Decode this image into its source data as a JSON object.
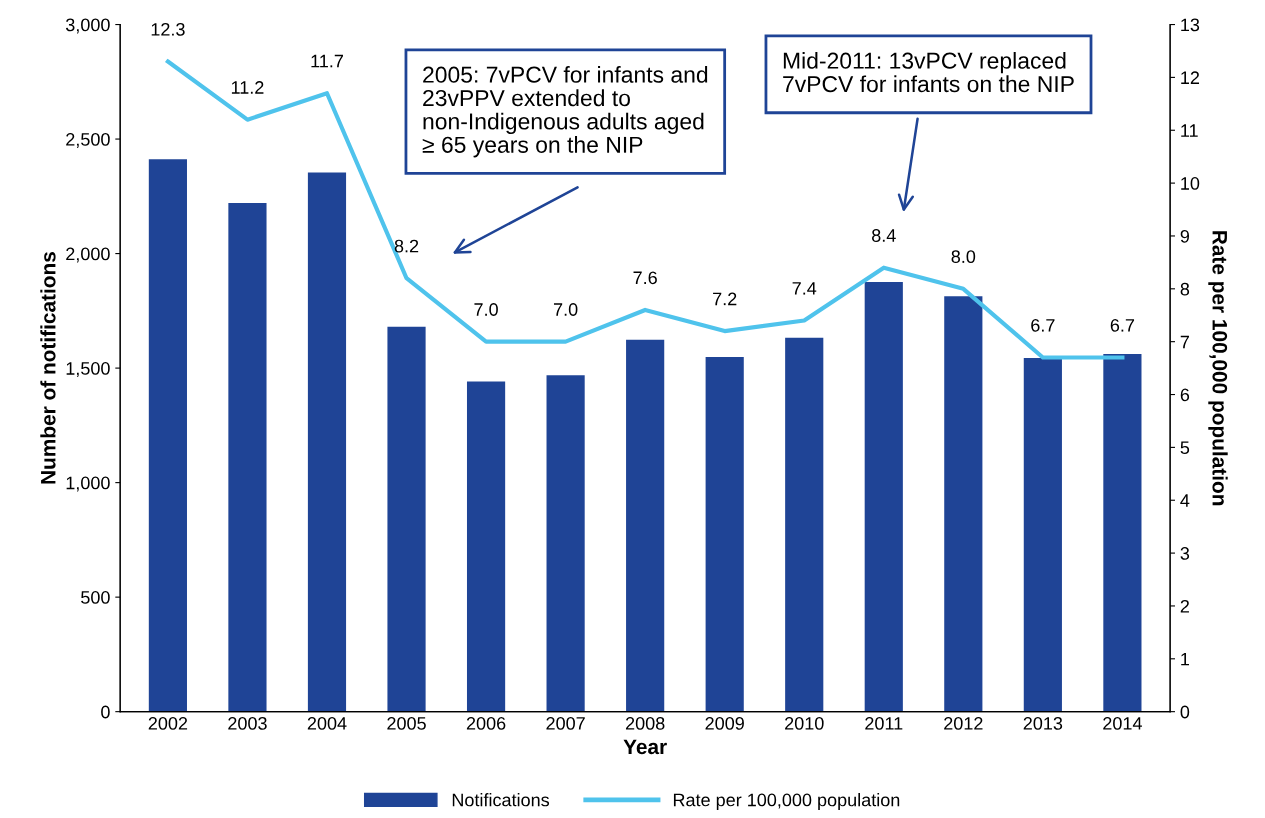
{
  "chart_data": {
    "type": "bar",
    "xlabel": "Year",
    "ylabel": "Number of notifications",
    "y2label": "Rate per 100,000 population",
    "categories": [
      "2002",
      "2003",
      "2004",
      "2005",
      "2006",
      "2007",
      "2008",
      "2009",
      "2010",
      "2011",
      "2012",
      "2013",
      "2014"
    ],
    "series": [
      {
        "name": "Notifications",
        "color": "#1f4496",
        "values": [
          2412,
          2221,
          2354,
          1681,
          1442,
          1469,
          1624,
          1549,
          1633,
          1876,
          1814,
          1544,
          1562
        ]
      },
      {
        "name": "Rate per 100,000 population",
        "type": "line",
        "axis": "y2",
        "color": "#4fc3ec",
        "values": [
          12.3,
          11.2,
          11.7,
          8.2,
          7.0,
          7.0,
          7.6,
          7.2,
          7.4,
          8.4,
          8.0,
          6.7,
          6.7
        ],
        "value_labels": [
          "12.3",
          "11.2",
          "11.7",
          "8.2",
          "7.0",
          "7.0",
          "7.6",
          "7.2",
          "7.4",
          "8.4",
          "8.0",
          "6.7",
          "6.7"
        ]
      }
    ],
    "ylim": [
      0,
      3000
    ],
    "yticks": [
      0,
      {
        "value": 500,
        "label": "500"
      },
      {
        "value": 1000,
        "label": "1,000"
      },
      {
        "value": 1500,
        "label": "1,500"
      },
      {
        "value": 2000,
        "label": "2,000"
      },
      {
        "value": 2500,
        "label": "2,500"
      },
      {
        "value": 3000,
        "label": "3,000"
      }
    ],
    "y2lim": [
      0,
      13
    ],
    "y2ticks": [
      0,
      1,
      2,
      3,
      4,
      5,
      6,
      7,
      8,
      9,
      10,
      11,
      12,
      13
    ],
    "annotations": [
      "2005: 7vPCV for infants and\n23vPPV extended to\nnon-Indigenous adults aged\n≥ 65 years on the NIP",
      "Mid-2011: 13vPCV replaced\n7vPCV for infants on the NIP"
    ],
    "grid": false,
    "legend": "bottom",
    "marker": "none",
    "line_style": "solid"
  }
}
